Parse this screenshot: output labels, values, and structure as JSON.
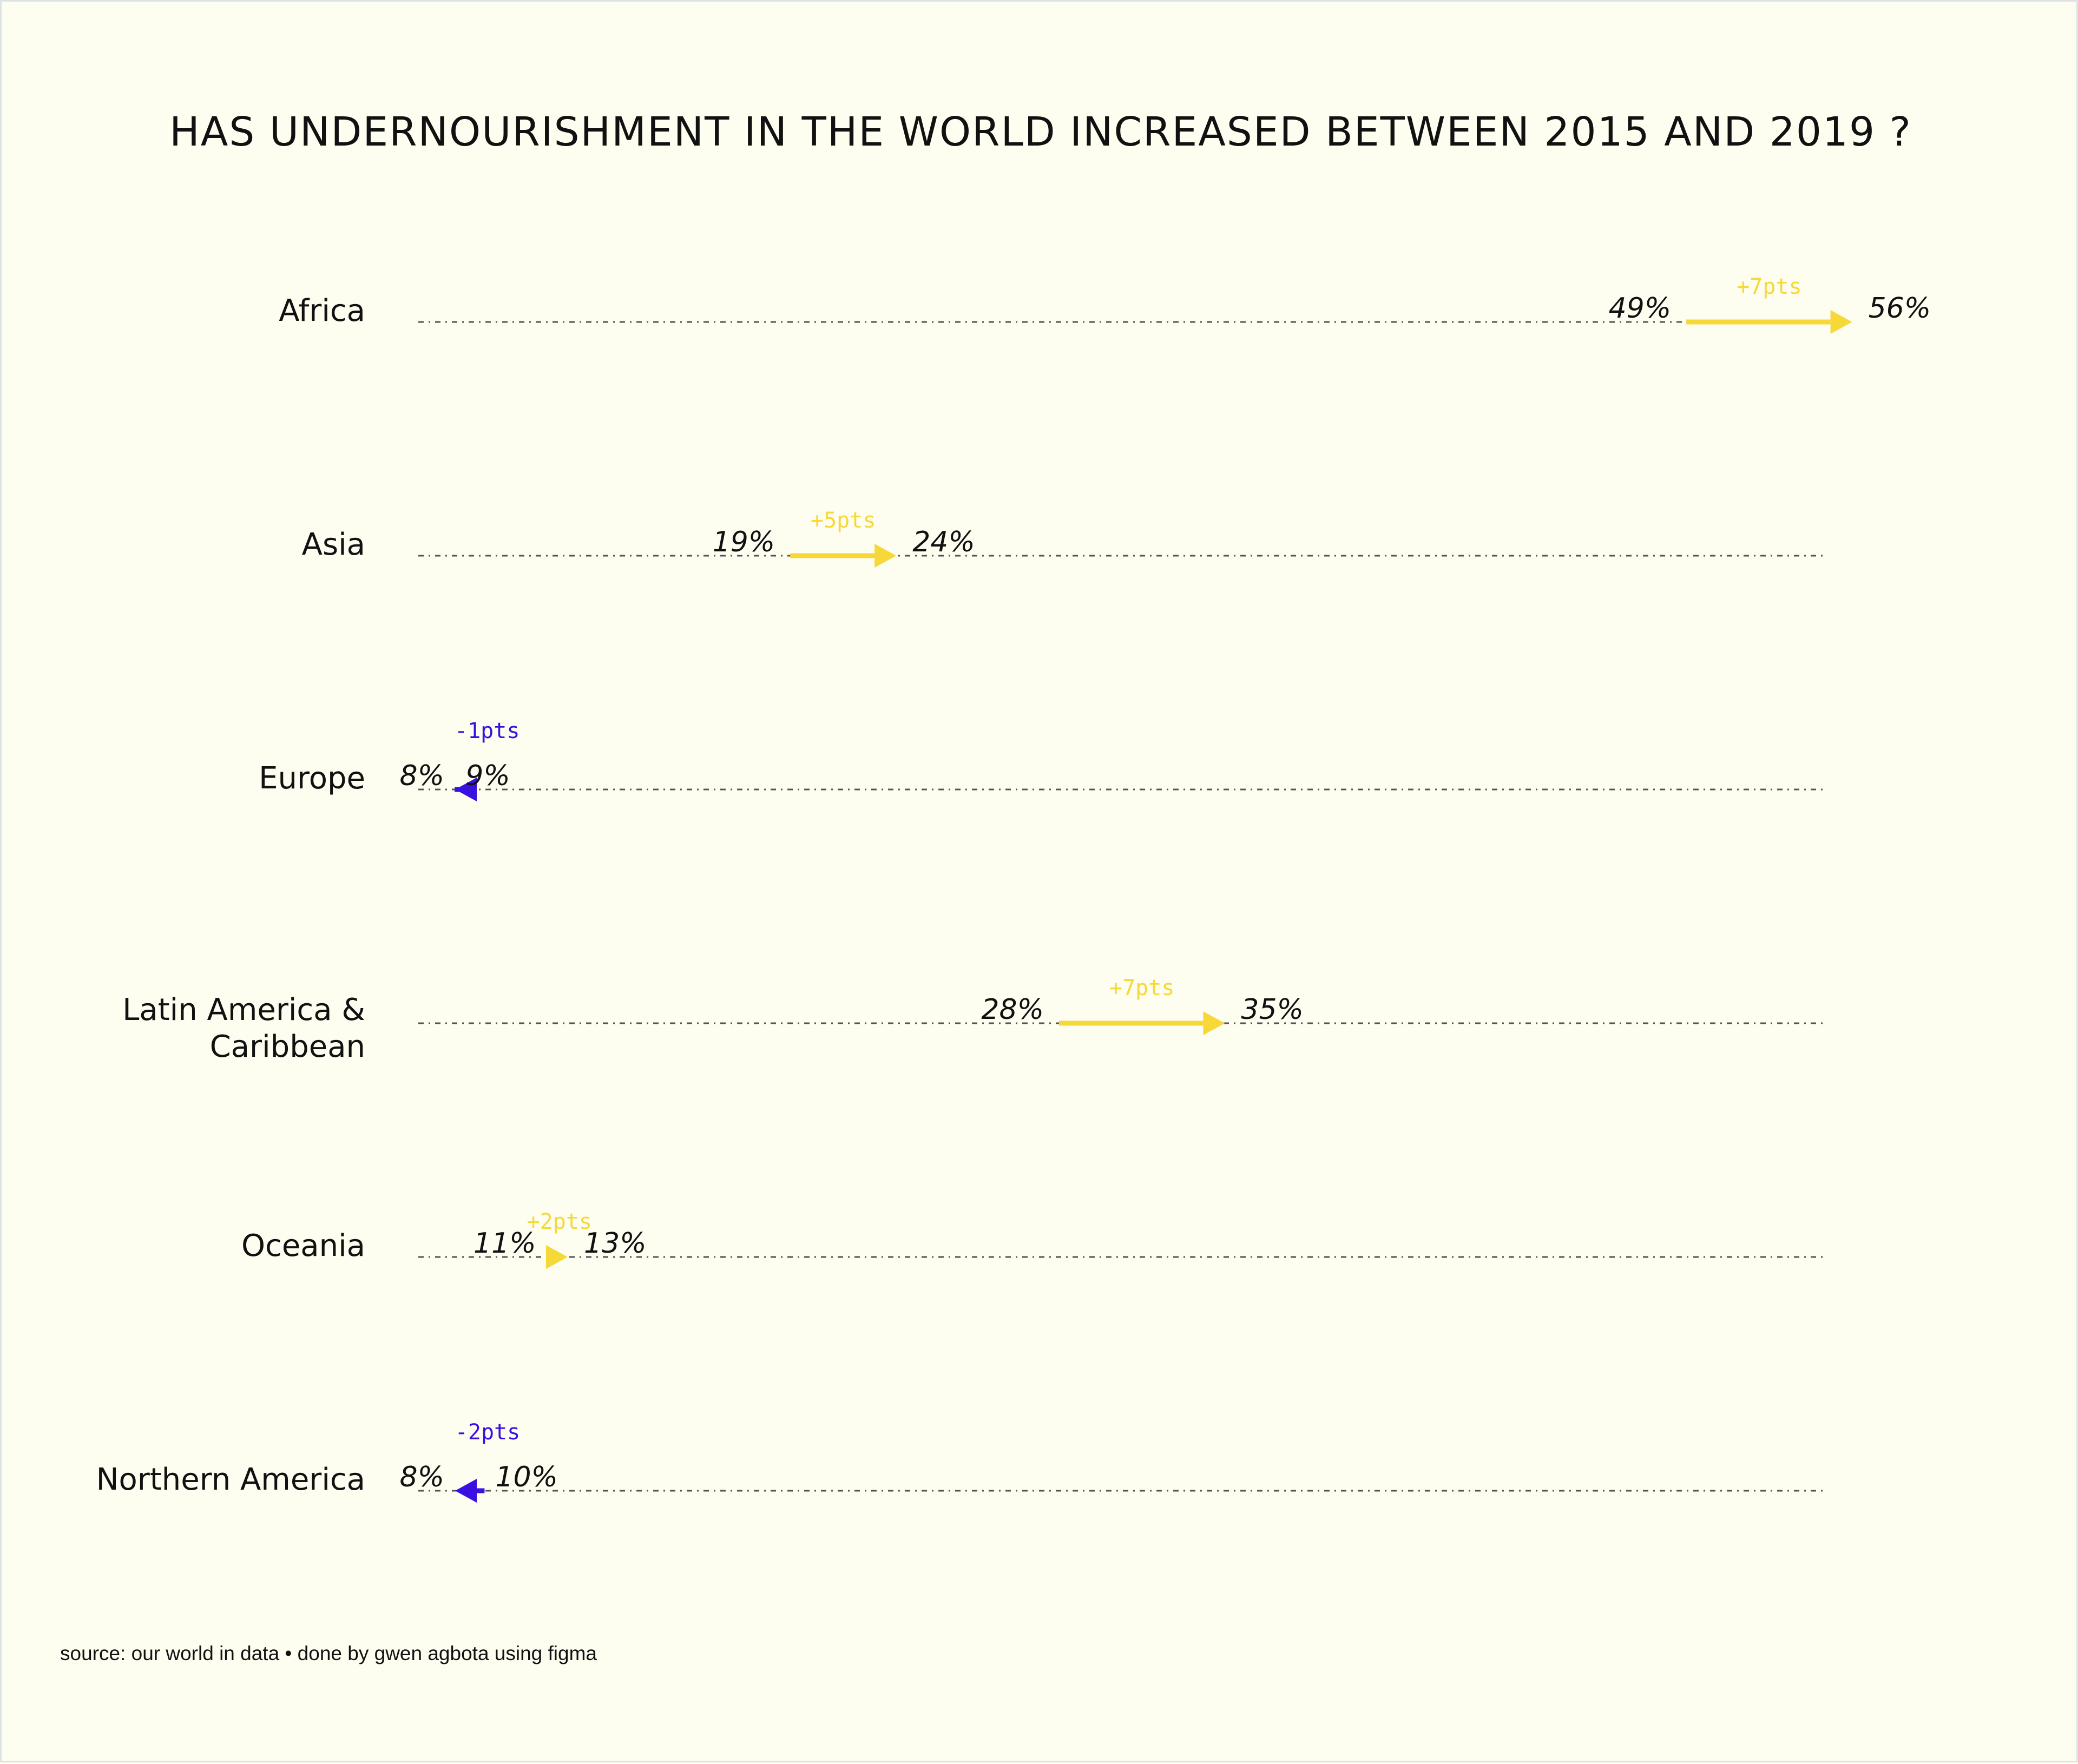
{
  "chart_data": {
    "type": "dumbbell-arrow",
    "title": "HAS UNDERNOURISHMENT IN THE WORLD INCREASED BETWEEN 2015 AND 2019 ?",
    "x_unit": "%",
    "xlim": [
      8,
      56
    ],
    "colors": {
      "increase": "#f6d839",
      "decrease": "#3a10e0",
      "dotted_line": "#555555",
      "text": "#111111"
    },
    "rows": [
      {
        "region": [
          "Africa"
        ],
        "start": 49,
        "end": 56,
        "start_label": "49%",
        "end_label": "56%",
        "delta_label": "+7pts"
      },
      {
        "region": [
          "Asia"
        ],
        "start": 19,
        "end": 24,
        "start_label": "19%",
        "end_label": "24%",
        "delta_label": "+5pts"
      },
      {
        "region": [
          "Europe"
        ],
        "start": 9,
        "end": 8,
        "start_label": "9%",
        "end_label": "8%",
        "delta_label": "-1pts"
      },
      {
        "region": [
          "Latin America &",
          "Caribbean"
        ],
        "start": 28,
        "end": 35,
        "start_label": "28%",
        "end_label": "35%",
        "delta_label": "+7pts"
      },
      {
        "region": [
          "Oceania"
        ],
        "start": 11,
        "end": 13,
        "start_label": "11%",
        "end_label": "13%",
        "delta_label": "+2pts"
      },
      {
        "region": [
          "Northern America"
        ],
        "start": 10,
        "end": 8,
        "start_label": "10%",
        "end_label": "8%",
        "delta_label": "-2pts"
      }
    ]
  },
  "footer": {
    "source": "source: our world in data • done by gwen agbota using figma"
  }
}
